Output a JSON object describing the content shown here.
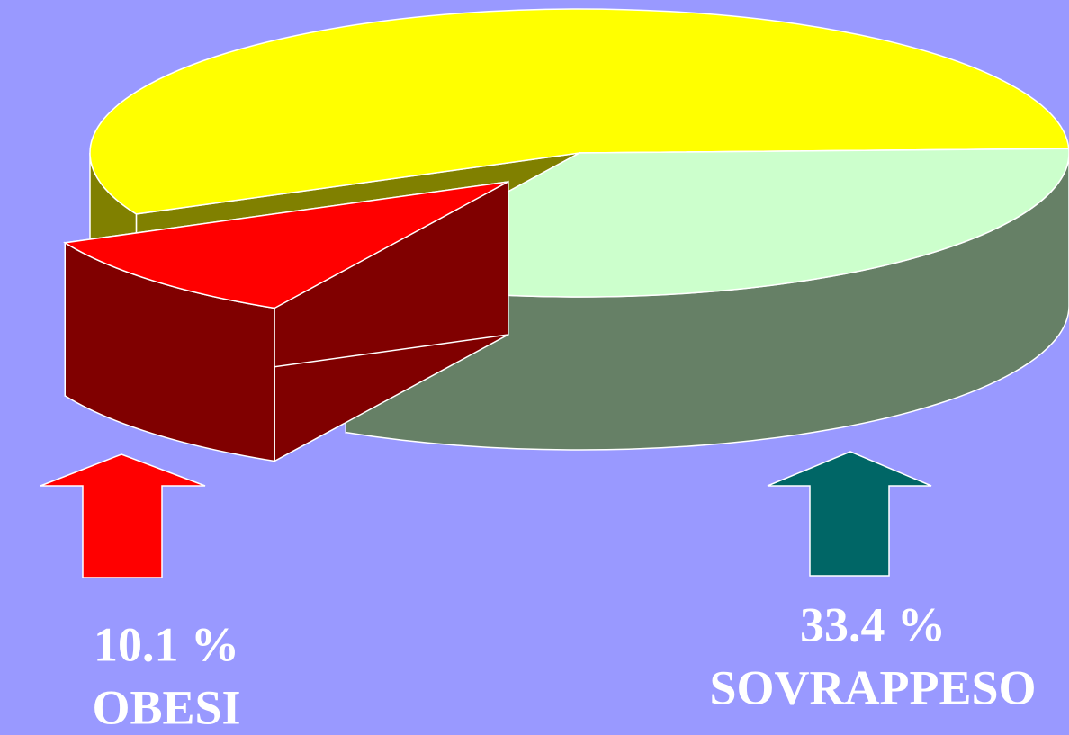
{
  "chart_data": {
    "type": "pie3d",
    "categories": [
      "SOVRAPPESO",
      "OBESI",
      null
    ],
    "values": [
      33.4,
      10.1,
      56.5
    ],
    "value_labels": [
      "33.4 %",
      "10.1 %",
      null
    ],
    "colors": [
      "#ccffcc",
      "#ff0000",
      "#ffff00"
    ],
    "exploded": [
      false,
      true,
      false
    ]
  }
}
